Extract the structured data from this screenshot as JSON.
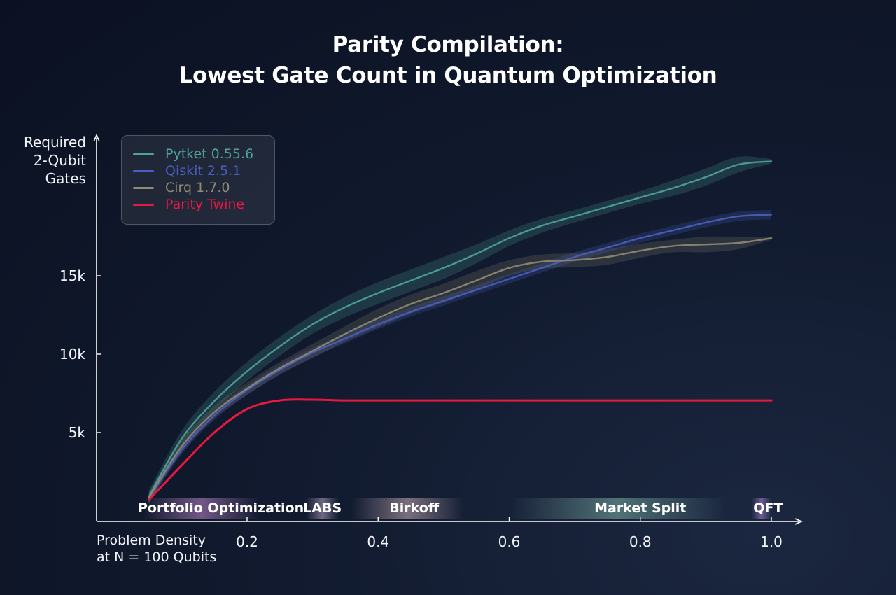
{
  "title": {
    "line1": "Parity Compilation:",
    "line2": "Lowest Gate Count in Quantum Optimization"
  },
  "chart_data": {
    "type": "line",
    "title": "Parity Compilation: Lowest Gate Count in Quantum Optimization",
    "xlabel": "Problem Density at N = 100 Qubits",
    "xlabel_lines": [
      "Problem Density",
      "at N = 100 Qubits"
    ],
    "ylabel": "Required 2-Qubit Gates",
    "ylabel_lines": [
      "Required",
      "2-Qubit",
      "Gates"
    ],
    "xlim": [
      0.05,
      1.05
    ],
    "ylim": [
      0,
      24000
    ],
    "x_ticks": [
      0.2,
      0.4,
      0.6,
      0.8,
      1.0
    ],
    "x_tick_labels": [
      "0.2",
      "0.4",
      "0.6",
      "0.8",
      "1.0"
    ],
    "y_ticks": [
      5000,
      10000,
      15000
    ],
    "y_tick_labels": [
      "5k",
      "10k",
      "15k"
    ],
    "grid": false,
    "legend_position": "top-left",
    "series": [
      {
        "name": "Pytket 0.55.6",
        "color": "#4fa39a",
        "x": [
          0.05,
          0.1,
          0.15,
          0.2,
          0.25,
          0.3,
          0.35,
          0.4,
          0.45,
          0.5,
          0.55,
          0.6,
          0.65,
          0.7,
          0.75,
          0.8,
          0.85,
          0.9,
          0.95,
          1.0
        ],
        "values": [
          900,
          4600,
          7000,
          8900,
          10500,
          11900,
          13000,
          13900,
          14700,
          15500,
          16400,
          17400,
          18200,
          18800,
          19400,
          20000,
          20600,
          21300,
          22100,
          22300
        ],
        "band": [
          400,
          500,
          600,
          600,
          600,
          600,
          650,
          700,
          700,
          700,
          600,
          500,
          450,
          400,
          400,
          400,
          500,
          550,
          500,
          150
        ]
      },
      {
        "name": "Qiskit 2.5.1",
        "color": "#4a5fbf",
        "x": [
          0.05,
          0.1,
          0.15,
          0.2,
          0.25,
          0.3,
          0.35,
          0.4,
          0.45,
          0.5,
          0.55,
          0.6,
          0.65,
          0.7,
          0.75,
          0.8,
          0.85,
          0.9,
          0.95,
          1.0
        ],
        "values": [
          800,
          3900,
          6100,
          7700,
          9000,
          10100,
          11000,
          11900,
          12700,
          13400,
          14100,
          14800,
          15500,
          16200,
          16800,
          17400,
          17900,
          18400,
          18800,
          18900
        ],
        "band": [
          300,
          300,
          300,
          300,
          300,
          300,
          300,
          300,
          300,
          300,
          300,
          300,
          300,
          300,
          300,
          300,
          300,
          300,
          300,
          300
        ]
      },
      {
        "name": "Cirq 1.7.0",
        "color": "#8f8a72",
        "x": [
          0.05,
          0.1,
          0.15,
          0.2,
          0.25,
          0.3,
          0.35,
          0.4,
          0.45,
          0.5,
          0.55,
          0.6,
          0.65,
          0.7,
          0.75,
          0.8,
          0.85,
          0.9,
          0.95,
          1.0
        ],
        "values": [
          850,
          4100,
          6300,
          7800,
          9100,
          10200,
          11300,
          12300,
          13200,
          13900,
          14700,
          15500,
          15900,
          16000,
          16200,
          16600,
          16900,
          17000,
          17100,
          17400
        ],
        "band": [
          350,
          400,
          400,
          400,
          400,
          450,
          500,
          600,
          600,
          600,
          600,
          500,
          450,
          450,
          500,
          450,
          400,
          500,
          400,
          100
        ]
      },
      {
        "name": "Parity Twine",
        "color": "#e8193f",
        "x": [
          0.05,
          0.1,
          0.15,
          0.2,
          0.25,
          0.3,
          0.35,
          0.4,
          0.45,
          0.5,
          0.55,
          0.6,
          0.65,
          0.7,
          0.75,
          0.8,
          0.85,
          0.9,
          0.95,
          1.0
        ],
        "values": [
          700,
          2900,
          5000,
          6500,
          7050,
          7100,
          7050,
          7050,
          7050,
          7050,
          7050,
          7050,
          7050,
          7050,
          7050,
          7050,
          7050,
          7050,
          7050,
          7050
        ],
        "band": [
          0,
          0,
          0,
          0,
          0,
          0,
          0,
          0,
          0,
          0,
          0,
          0,
          0,
          0,
          0,
          0,
          0,
          0,
          0,
          0
        ]
      }
    ],
    "regions": [
      {
        "label": "Portfolio Optimization",
        "x_start": 0.04,
        "x_end": 0.22,
        "label_x": 0.16,
        "color": "#c38ad1"
      },
      {
        "label": "LABS",
        "x_start": 0.29,
        "x_end": 0.34,
        "label_x": 0.315,
        "color": "#b9a7c9"
      },
      {
        "label": "Birkoff",
        "x_start": 0.36,
        "x_end": 0.53,
        "label_x": 0.455,
        "color": "#cdb2bb"
      },
      {
        "label": "Market Split",
        "x_start": 0.6,
        "x_end": 0.93,
        "label_x": 0.8,
        "color": "#7fb2a8"
      },
      {
        "label": "QFT",
        "x_start": 0.97,
        "x_end": 1.0,
        "label_x": 0.995,
        "color": "#b08ad8"
      }
    ]
  }
}
